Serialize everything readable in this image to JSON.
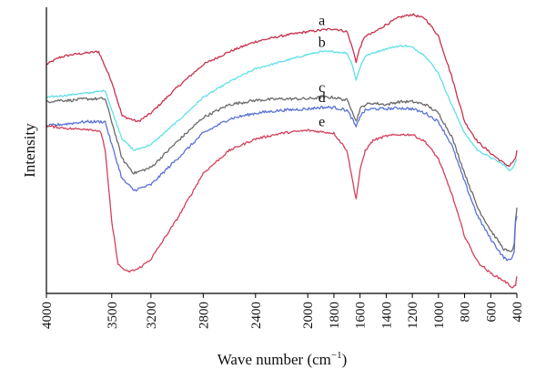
{
  "chart_data": {
    "type": "line",
    "xlabel": "Wave number (cm",
    "xlabel_superscript": "−1",
    "xlabel_suffix": ")",
    "ylabel": "Intensity",
    "x_reversed": true,
    "xlim": [
      4000,
      400
    ],
    "ylim": [
      0,
      1
    ],
    "y_ticks_shown": false,
    "grid": false,
    "x_tick_values": [
      4000,
      3500,
      3200,
      2800,
      2400,
      2000,
      1800,
      1600,
      1400,
      1200,
      1000,
      800,
      600,
      400
    ],
    "x_tick_labels": [
      "4000",
      "3500",
      "3200",
      "2800",
      "2400",
      "2000",
      "1800",
      "1600",
      "1400",
      "1200",
      "1000",
      "800",
      "600",
      "400"
    ],
    "series": [
      {
        "name": "a",
        "color": "#c8314d",
        "noise": 0.004,
        "x": [
          4000,
          3900,
          3800,
          3700,
          3600,
          3500,
          3420,
          3300,
          3200,
          3000,
          2800,
          2600,
          2400,
          2200,
          2000,
          1900,
          1800,
          1700,
          1660,
          1630,
          1600,
          1560,
          1500,
          1400,
          1300,
          1200,
          1100,
          1000,
          900,
          800,
          700,
          600,
          500,
          460,
          430,
          410,
          400
        ],
        "y": [
          0.8,
          0.825,
          0.835,
          0.84,
          0.845,
          0.74,
          0.62,
          0.6,
          0.63,
          0.72,
          0.8,
          0.845,
          0.88,
          0.9,
          0.915,
          0.92,
          0.925,
          0.915,
          0.86,
          0.81,
          0.86,
          0.9,
          0.91,
          0.94,
          0.965,
          0.975,
          0.96,
          0.9,
          0.76,
          0.6,
          0.53,
          0.49,
          0.455,
          0.445,
          0.46,
          0.47,
          0.5
        ]
      },
      {
        "name": "b",
        "color": "#5fe0e8",
        "noise": 0.003,
        "x": [
          4000,
          3900,
          3800,
          3700,
          3600,
          3550,
          3500,
          3420,
          3330,
          3200,
          3000,
          2800,
          2600,
          2400,
          2200,
          2000,
          1900,
          1800,
          1700,
          1660,
          1630,
          1600,
          1560,
          1500,
          1400,
          1300,
          1250,
          1200,
          1100,
          1000,
          900,
          800,
          700,
          600,
          500,
          460,
          430,
          400
        ],
        "y": [
          0.685,
          0.69,
          0.695,
          0.7,
          0.705,
          0.71,
          0.64,
          0.54,
          0.5,
          0.52,
          0.6,
          0.685,
          0.74,
          0.785,
          0.81,
          0.835,
          0.845,
          0.845,
          0.84,
          0.8,
          0.745,
          0.79,
          0.83,
          0.84,
          0.855,
          0.865,
          0.865,
          0.86,
          0.83,
          0.77,
          0.66,
          0.56,
          0.5,
          0.475,
          0.45,
          0.43,
          0.44,
          0.47
        ]
      },
      {
        "name": "c",
        "color": "#6a6a6a",
        "noise": 0.005,
        "x": [
          4000,
          3900,
          3800,
          3700,
          3600,
          3550,
          3500,
          3420,
          3330,
          3200,
          3000,
          2800,
          2600,
          2400,
          2200,
          2000,
          1900,
          1800,
          1700,
          1660,
          1630,
          1600,
          1560,
          1500,
          1400,
          1300,
          1200,
          1100,
          1000,
          900,
          800,
          700,
          600,
          500,
          460,
          440,
          420,
          410,
          400
        ],
        "y": [
          0.67,
          0.675,
          0.675,
          0.68,
          0.68,
          0.68,
          0.6,
          0.47,
          0.42,
          0.44,
          0.53,
          0.615,
          0.66,
          0.675,
          0.68,
          0.68,
          0.685,
          0.685,
          0.675,
          0.64,
          0.6,
          0.645,
          0.66,
          0.665,
          0.66,
          0.67,
          0.67,
          0.66,
          0.63,
          0.55,
          0.42,
          0.3,
          0.22,
          0.155,
          0.145,
          0.15,
          0.17,
          0.26,
          0.3
        ]
      },
      {
        "name": "d",
        "color": "#5872d6",
        "noise": 0.005,
        "x": [
          4000,
          3900,
          3800,
          3700,
          3600,
          3550,
          3500,
          3420,
          3330,
          3200,
          3000,
          2800,
          2600,
          2400,
          2200,
          2000,
          1900,
          1800,
          1700,
          1660,
          1630,
          1600,
          1560,
          1500,
          1400,
          1300,
          1200,
          1100,
          1000,
          900,
          800,
          700,
          600,
          500,
          460,
          440,
          420,
          410,
          400
        ],
        "y": [
          0.585,
          0.59,
          0.595,
          0.6,
          0.6,
          0.6,
          0.52,
          0.4,
          0.36,
          0.38,
          0.47,
          0.56,
          0.61,
          0.63,
          0.64,
          0.645,
          0.65,
          0.65,
          0.64,
          0.61,
          0.58,
          0.62,
          0.64,
          0.645,
          0.645,
          0.648,
          0.645,
          0.63,
          0.6,
          0.52,
          0.39,
          0.27,
          0.19,
          0.125,
          0.115,
          0.12,
          0.15,
          0.25,
          0.27
        ]
      },
      {
        "name": "e",
        "color": "#d2405b",
        "noise": 0.004,
        "x": [
          4000,
          3900,
          3800,
          3700,
          3620,
          3580,
          3550,
          3500,
          3450,
          3380,
          3300,
          3200,
          3000,
          2800,
          2600,
          2400,
          2200,
          2000,
          1900,
          1800,
          1700,
          1660,
          1630,
          1600,
          1560,
          1500,
          1400,
          1300,
          1200,
          1100,
          1000,
          900,
          800,
          700,
          600,
          500,
          460,
          430,
          410,
          400
        ],
        "y": [
          0.585,
          0.58,
          0.575,
          0.575,
          0.57,
          0.56,
          0.5,
          0.25,
          0.1,
          0.075,
          0.085,
          0.12,
          0.26,
          0.42,
          0.5,
          0.54,
          0.56,
          0.57,
          0.565,
          0.56,
          0.5,
          0.4,
          0.33,
          0.43,
          0.5,
          0.535,
          0.55,
          0.555,
          0.555,
          0.53,
          0.47,
          0.35,
          0.2,
          0.11,
          0.07,
          0.045,
          0.03,
          0.02,
          0.03,
          0.06
        ]
      }
    ]
  }
}
